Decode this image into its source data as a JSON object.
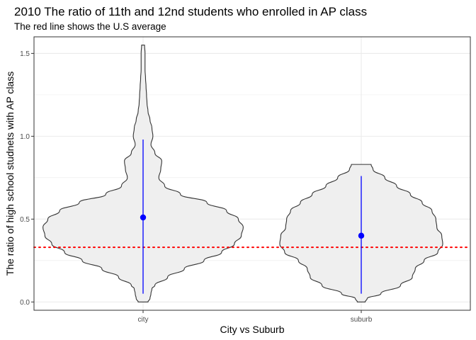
{
  "chart_data": {
    "type": "violin",
    "title": "2010 The ratio of 11th and 12nd students who enrolled in AP class",
    "subtitle": "The red line shows the U.S average",
    "xlabel": "City vs Suburb",
    "ylabel": "The ratio of high school studnets with AP class",
    "categories": [
      "city",
      "suburb"
    ],
    "ylim": [
      -0.05,
      1.6
    ],
    "yticks": [
      0.0,
      0.5,
      1.0,
      1.5
    ],
    "ytick_labels": [
      "0.0",
      "0.5",
      "1.0",
      "1.5"
    ],
    "grid": true,
    "reference_line": {
      "y": 0.33,
      "color": "#ff0000",
      "style": "dotted"
    },
    "violins": [
      {
        "category": "city",
        "y_min": 0.0,
        "y_max": 1.55,
        "profile": [
          [
            0.0,
            0.05
          ],
          [
            0.02,
            0.07
          ],
          [
            0.05,
            0.08
          ],
          [
            0.08,
            0.09
          ],
          [
            0.1,
            0.12
          ],
          [
            0.15,
            0.25
          ],
          [
            0.2,
            0.42
          ],
          [
            0.25,
            0.62
          ],
          [
            0.3,
            0.8
          ],
          [
            0.35,
            0.93
          ],
          [
            0.4,
            1.0
          ],
          [
            0.45,
            1.02
          ],
          [
            0.5,
            0.97
          ],
          [
            0.55,
            0.85
          ],
          [
            0.6,
            0.65
          ],
          [
            0.65,
            0.38
          ],
          [
            0.7,
            0.22
          ],
          [
            0.75,
            0.16
          ],
          [
            0.8,
            0.18
          ],
          [
            0.85,
            0.19
          ],
          [
            0.9,
            0.12
          ],
          [
            0.95,
            0.08
          ],
          [
            1.0,
            0.1
          ],
          [
            1.05,
            0.09
          ],
          [
            1.1,
            0.07
          ],
          [
            1.15,
            0.05
          ],
          [
            1.2,
            0.04
          ],
          [
            1.25,
            0.035
          ],
          [
            1.3,
            0.03
          ],
          [
            1.35,
            0.025
          ],
          [
            1.4,
            0.02
          ],
          [
            1.45,
            0.02
          ],
          [
            1.5,
            0.02
          ],
          [
            1.55,
            0.015
          ]
        ],
        "point": 0.51,
        "range_low": 0.05,
        "range_high": 0.98
      },
      {
        "category": "suburb",
        "y_min": 0.0,
        "y_max": 0.83,
        "profile": [
          [
            0.0,
            0.04
          ],
          [
            0.02,
            0.06
          ],
          [
            0.05,
            0.2
          ],
          [
            0.1,
            0.4
          ],
          [
            0.15,
            0.52
          ],
          [
            0.2,
            0.55
          ],
          [
            0.25,
            0.64
          ],
          [
            0.3,
            0.78
          ],
          [
            0.35,
            0.83
          ],
          [
            0.4,
            0.82
          ],
          [
            0.45,
            0.77
          ],
          [
            0.5,
            0.76
          ],
          [
            0.55,
            0.72
          ],
          [
            0.6,
            0.62
          ],
          [
            0.65,
            0.5
          ],
          [
            0.7,
            0.36
          ],
          [
            0.75,
            0.24
          ],
          [
            0.8,
            0.12
          ],
          [
            0.83,
            0.1
          ]
        ],
        "point": 0.4,
        "range_low": 0.05,
        "range_high": 0.76
      }
    ],
    "colors": {
      "violin_fill": "#efefef",
      "violin_stroke": "#333333",
      "point": "#0000ff",
      "range": "#0000ff",
      "reference": "#ff0000",
      "grid": "#ebebeb",
      "panel_border": "#333333"
    }
  }
}
